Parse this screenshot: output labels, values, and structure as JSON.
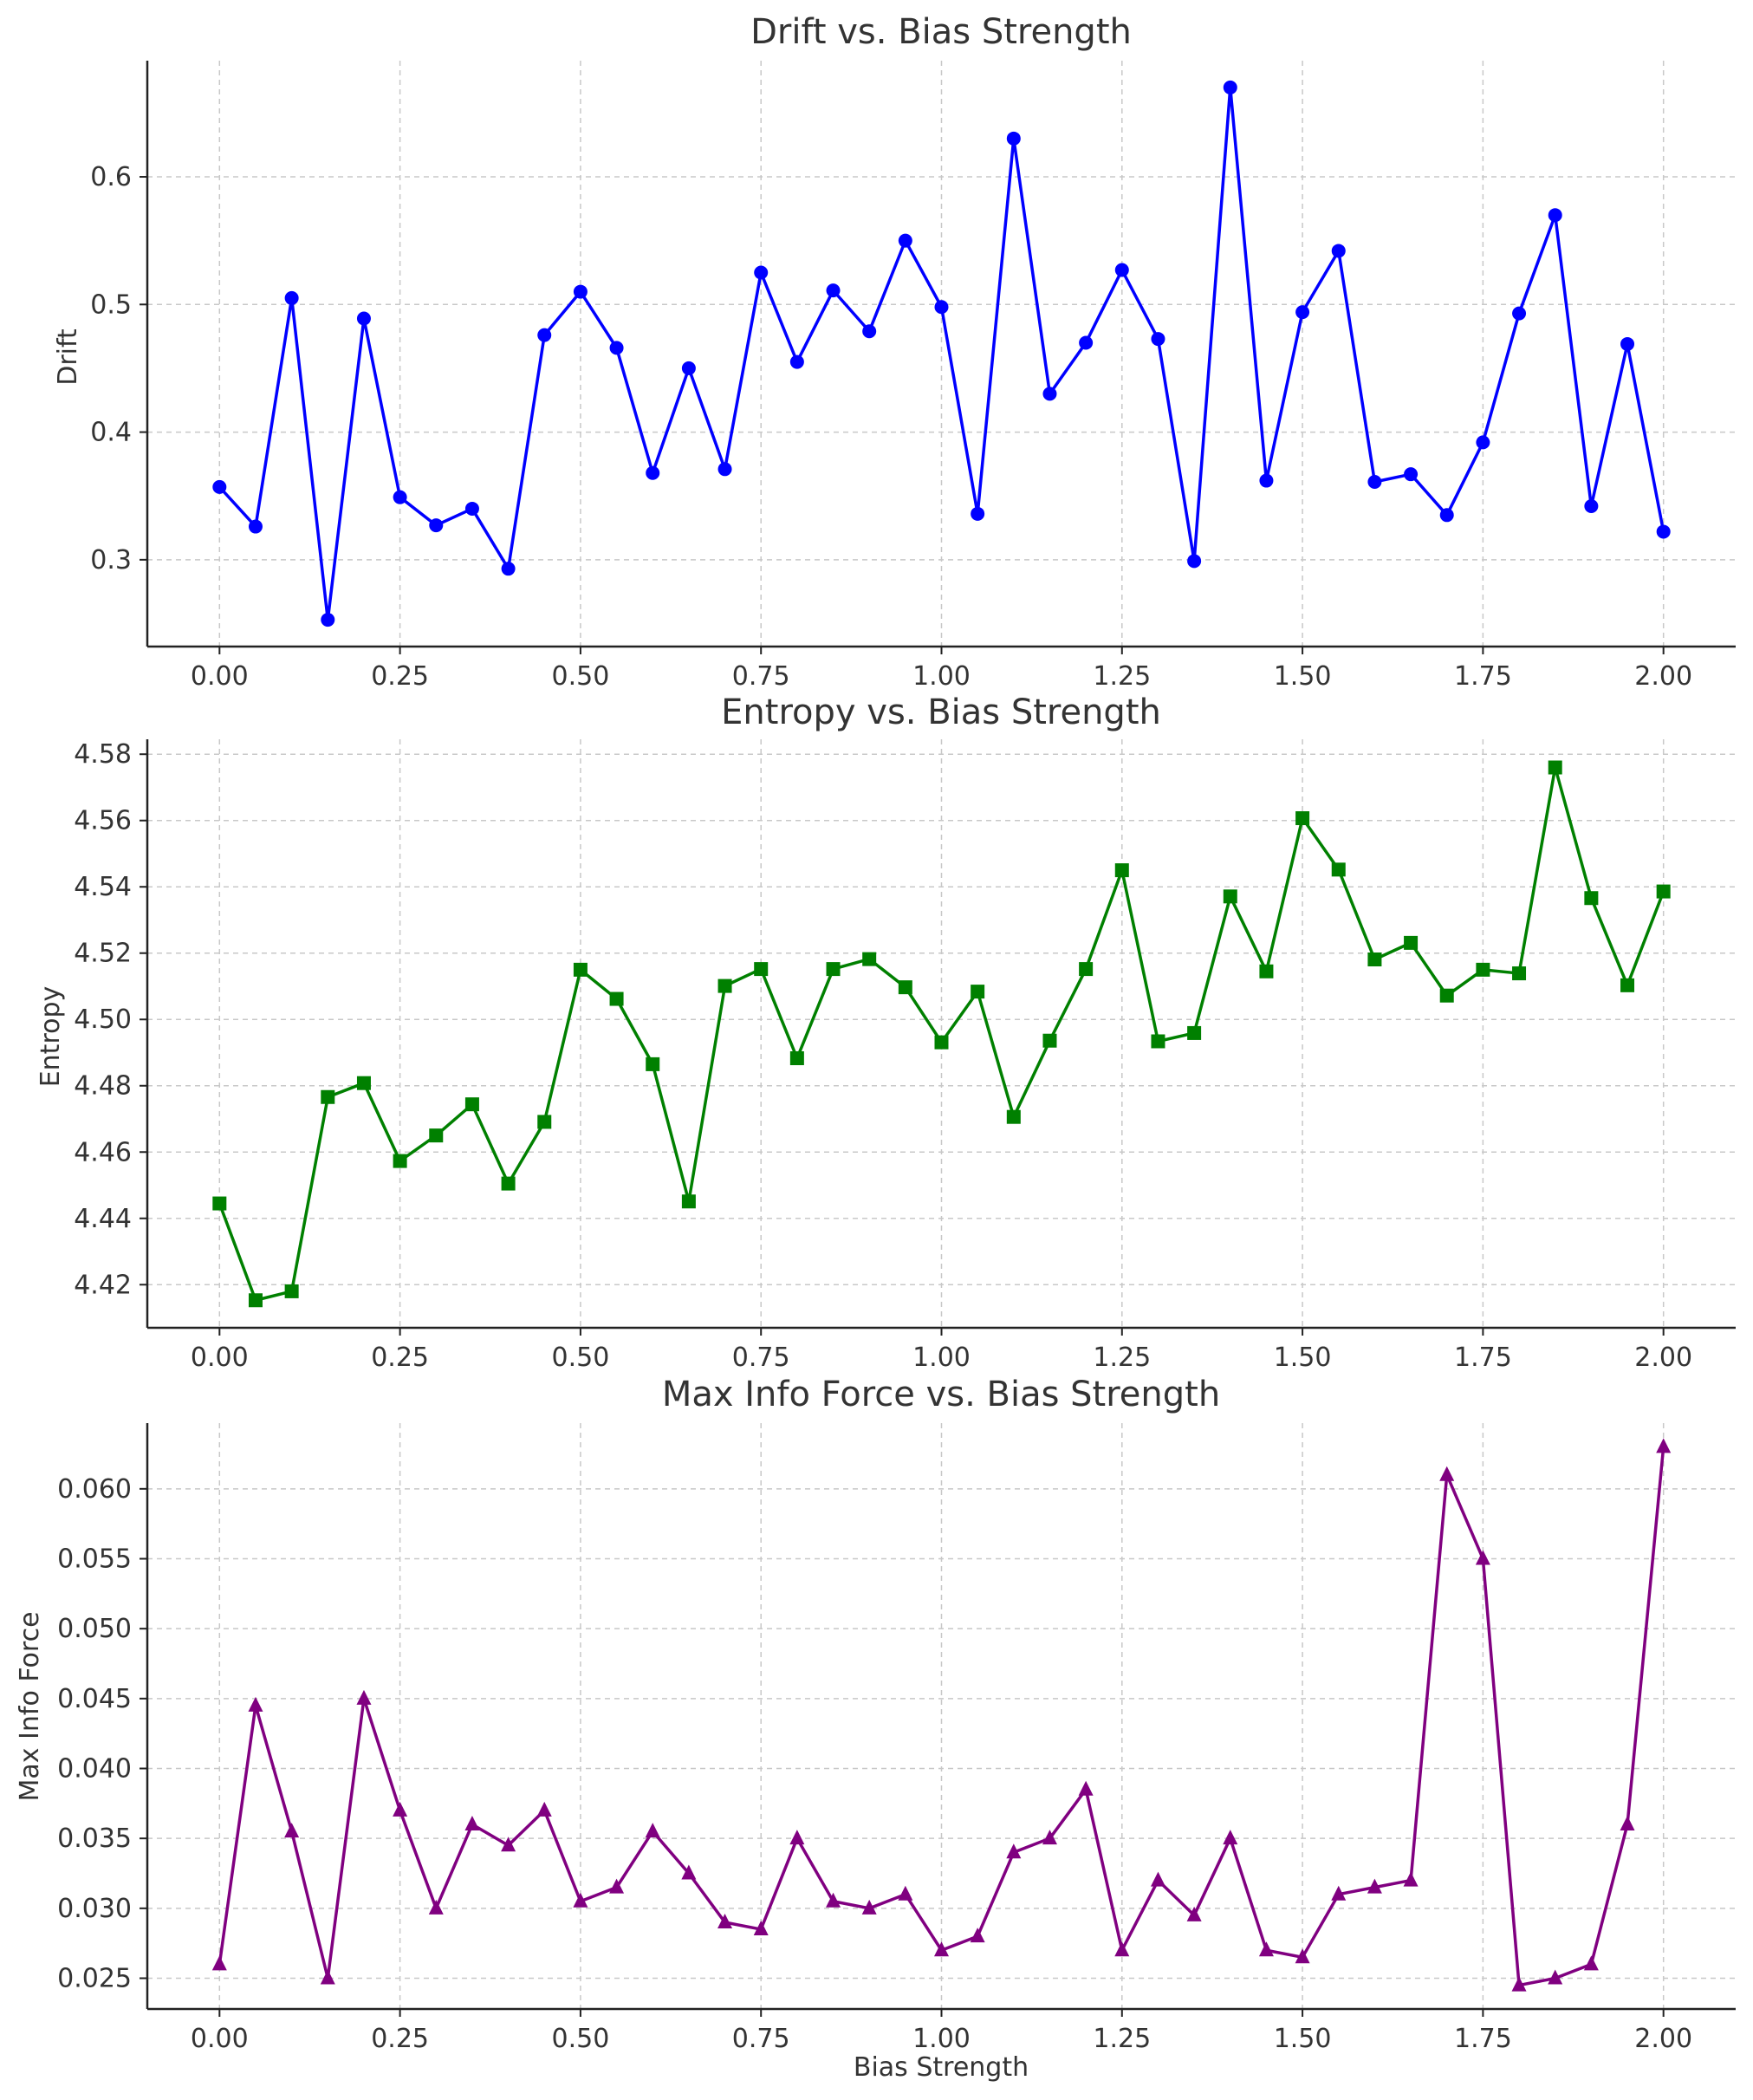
{
  "chart_data": [
    {
      "type": "line",
      "title": "Drift vs. Bias Strength",
      "xlabel": "",
      "ylabel": "Drift",
      "x": [
        0.0,
        0.05,
        0.1,
        0.15,
        0.2,
        0.25,
        0.3,
        0.35,
        0.4,
        0.45,
        0.5,
        0.55,
        0.6,
        0.65,
        0.7,
        0.75,
        0.8,
        0.85,
        0.9,
        0.95,
        1.0,
        1.05,
        1.1,
        1.15,
        1.2,
        1.25,
        1.3,
        1.35,
        1.4,
        1.45,
        1.5,
        1.55,
        1.6,
        1.65,
        1.7,
        1.75,
        1.8,
        1.85,
        1.9,
        1.95,
        2.0
      ],
      "series": [
        {
          "values": [
            0.357,
            0.326,
            0.505,
            0.253,
            0.489,
            0.349,
            0.327,
            0.34,
            0.293,
            0.476,
            0.51,
            0.466,
            0.368,
            0.45,
            0.371,
            0.525,
            0.455,
            0.511,
            0.479,
            0.55,
            0.498,
            0.336,
            0.63,
            0.43,
            0.47,
            0.527,
            0.473,
            0.299,
            0.67,
            0.362,
            0.494,
            0.542,
            0.361,
            0.367,
            0.335,
            0.392,
            0.493,
            0.57,
            0.342,
            0.469,
            0.322
          ],
          "color": "#0000ff",
          "marker": "circle"
        }
      ],
      "xlim": [
        -0.1,
        2.1
      ],
      "ylim": [
        0.232,
        0.691
      ],
      "xticks": [
        "0.00",
        "0.25",
        "0.50",
        "0.75",
        "1.00",
        "1.25",
        "1.50",
        "1.75",
        "2.00"
      ],
      "yticks": [
        "0.3",
        "0.4",
        "0.5",
        "0.6"
      ],
      "grid": true
    },
    {
      "type": "line",
      "title": "Entropy vs. Bias Strength",
      "xlabel": "",
      "ylabel": "Entropy",
      "x": [
        0.0,
        0.05,
        0.1,
        0.15,
        0.2,
        0.25,
        0.3,
        0.35,
        0.4,
        0.45,
        0.5,
        0.55,
        0.6,
        0.65,
        0.7,
        0.75,
        0.8,
        0.85,
        0.9,
        0.95,
        1.0,
        1.05,
        1.1,
        1.15,
        1.2,
        1.25,
        1.3,
        1.35,
        1.4,
        1.45,
        1.5,
        1.55,
        1.6,
        1.65,
        1.7,
        1.75,
        1.8,
        1.85,
        1.9,
        1.95,
        2.0
      ],
      "series": [
        {
          "values": [
            4.4445,
            4.4153,
            4.418,
            4.4766,
            4.4808,
            4.4573,
            4.465,
            4.4744,
            4.4505,
            4.4691,
            4.515,
            4.5062,
            4.4865,
            4.4451,
            4.5101,
            4.5152,
            4.4883,
            4.5152,
            4.5182,
            4.5097,
            4.4931,
            4.5084,
            4.4706,
            4.4936,
            4.5152,
            4.545,
            4.4934,
            4.4959,
            4.5371,
            4.5145,
            4.5607,
            4.5452,
            4.5181,
            4.5231,
            4.5072,
            4.515,
            4.5139,
            4.576,
            4.5366,
            4.5103,
            4.5386
          ],
          "color": "#008000",
          "marker": "square"
        }
      ],
      "xlim": [
        -0.1,
        2.1
      ],
      "ylim": [
        4.407,
        4.5845
      ],
      "xticks": [
        "0.00",
        "0.25",
        "0.50",
        "0.75",
        "1.00",
        "1.25",
        "1.50",
        "1.75",
        "2.00"
      ],
      "yticks": [
        "4.42",
        "4.44",
        "4.46",
        "4.48",
        "4.50",
        "4.52",
        "4.54",
        "4.56",
        "4.58"
      ],
      "grid": true
    },
    {
      "type": "line",
      "title": "Max Info Force vs. Bias Strength",
      "xlabel": "Bias Strength",
      "ylabel": "Max Info Force",
      "x": [
        0.0,
        0.05,
        0.1,
        0.15,
        0.2,
        0.25,
        0.3,
        0.35,
        0.4,
        0.45,
        0.5,
        0.55,
        0.6,
        0.65,
        0.7,
        0.75,
        0.8,
        0.85,
        0.9,
        0.95,
        1.0,
        1.05,
        1.1,
        1.15,
        1.2,
        1.25,
        1.3,
        1.35,
        1.4,
        1.45,
        1.5,
        1.55,
        1.6,
        1.65,
        1.7,
        1.75,
        1.8,
        1.85,
        1.9,
        1.95,
        2.0
      ],
      "series": [
        {
          "values": [
            0.026,
            0.0445,
            0.0355,
            0.025,
            0.045,
            0.037,
            0.03,
            0.036,
            0.0345,
            0.037,
            0.0305,
            0.0315,
            0.0355,
            0.0325,
            0.029,
            0.0285,
            0.035,
            0.0305,
            0.03,
            0.031,
            0.027,
            0.028,
            0.034,
            0.035,
            0.0385,
            0.027,
            0.032,
            0.0295,
            0.035,
            0.027,
            0.0265,
            0.031,
            0.0315,
            0.032,
            0.061,
            0.055,
            0.0245,
            0.025,
            0.026,
            0.036,
            0.063
          ],
          "color": "#800080",
          "marker": "triangle"
        }
      ],
      "xlim": [
        -0.1,
        2.1
      ],
      "ylim": [
        0.0228,
        0.0647
      ],
      "xticks": [
        "0.00",
        "0.25",
        "0.50",
        "0.75",
        "1.00",
        "1.25",
        "1.50",
        "1.75",
        "2.00"
      ],
      "yticks": [
        "0.025",
        "0.030",
        "0.035",
        "0.040",
        "0.045",
        "0.050",
        "0.055",
        "0.060"
      ],
      "grid": true
    }
  ]
}
